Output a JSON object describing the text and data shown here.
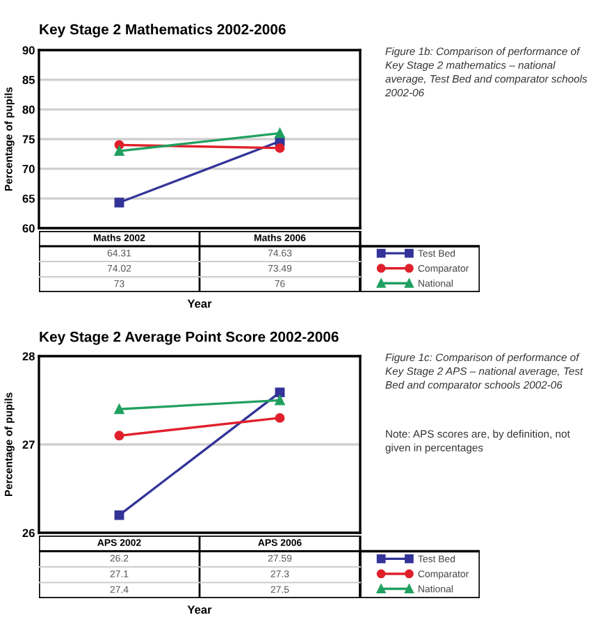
{
  "chart_data": [
    {
      "type": "line",
      "title": "Key Stage 2 Mathematics 2002-2006",
      "xlabel": "Year",
      "ylabel": "Percentage of pupils",
      "categories": [
        "Maths 2002",
        "Maths 2006"
      ],
      "series": [
        {
          "name": "Test Bed",
          "color": "#333399",
          "marker": "square",
          "values": [
            64.31,
            74.63
          ]
        },
        {
          "name": "Comparator",
          "color": "#e0202a",
          "marker": "circle",
          "values": [
            74.02,
            73.49
          ]
        },
        {
          "name": "National",
          "color": "#20a060",
          "marker": "triangle",
          "values": [
            73,
            76
          ]
        }
      ],
      "ylim": [
        60,
        90
      ],
      "yticks": [
        60,
        65,
        70,
        75,
        80,
        85,
        90
      ],
      "grid": "y",
      "legend": "bottom right",
      "data_labels": true,
      "annotations": [
        "Figure 1b: Comparison of performance of Key Stage 2 mathematics – national average, Test Bed and comparator schools 2002-06"
      ]
    },
    {
      "type": "line",
      "title": "Key Stage 2 Average Point Score 2002-2006",
      "xlabel": "Year",
      "ylabel": "Percentage of pupils",
      "categories": [
        "APS 2002",
        "APS 2006"
      ],
      "series": [
        {
          "name": "Test Bed",
          "color": "#333399",
          "marker": "square",
          "values": [
            26.2,
            27.59
          ]
        },
        {
          "name": "Comparator",
          "color": "#e0202a",
          "marker": "circle",
          "values": [
            27.1,
            27.3
          ]
        },
        {
          "name": "National",
          "color": "#20a060",
          "marker": "triangle",
          "values": [
            27.4,
            27.5
          ]
        }
      ],
      "ylim": [
        26,
        28
      ],
      "yticks": [
        26,
        27,
        28
      ],
      "grid": "y",
      "legend": "bottom right",
      "data_labels": true,
      "annotations": [
        "Figure 1c: Comparison of performance of Key Stage 2 APS – national average, Test Bed and comparator schools 2002-06",
        "Note: APS scores are, by definition, not given in percentages"
      ]
    }
  ]
}
